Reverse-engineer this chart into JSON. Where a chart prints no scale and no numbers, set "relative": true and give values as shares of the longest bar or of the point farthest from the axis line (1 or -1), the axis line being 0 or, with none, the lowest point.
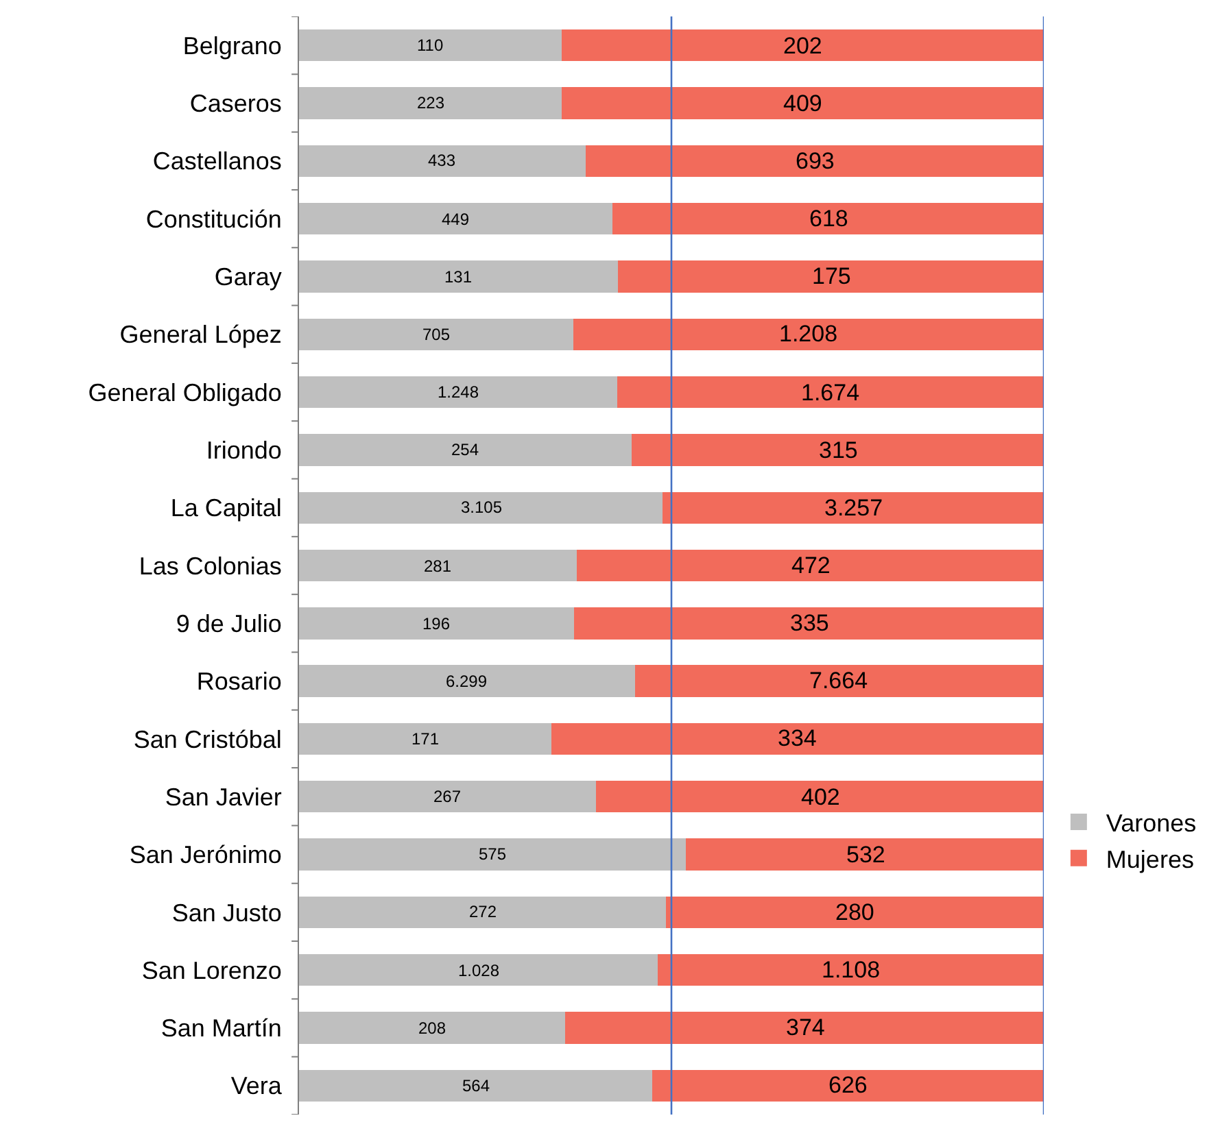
{
  "chart_data": {
    "type": "bar",
    "orientation": "horizontal",
    "stacked": true,
    "relative": true,
    "categories": [
      "Belgrano",
      "Caseros",
      "Castellanos",
      "Constitución",
      "Garay",
      "General López",
      "General Obligado",
      "Iriondo",
      "La Capital",
      "Las Colonias",
      "9 de Julio",
      "Rosario",
      "San Cristóbal",
      "San Javier",
      "San Jerónimo",
      "San Justo",
      "San Lorenzo",
      "San Martín",
      "Vera"
    ],
    "series": [
      {
        "name": "Varones",
        "color": "#bfbfbf",
        "values": [
          0.3526,
          0.3528,
          0.3845,
          0.4208,
          0.4281,
          0.3685,
          0.4271,
          0.4464,
          0.4881,
          0.3732,
          0.3691,
          0.4511,
          0.3386,
          0.3991,
          0.5194,
          0.4928,
          0.4813,
          0.3574,
          0.4739
        ]
      },
      {
        "name": "Mujeres",
        "color": "#f26b5b",
        "values": [
          0.6474,
          0.6472,
          0.6155,
          0.5792,
          0.5719,
          0.6315,
          0.5729,
          0.5536,
          0.5119,
          0.6268,
          0.6309,
          0.5489,
          0.6614,
          0.6009,
          0.4806,
          0.5072,
          0.5187,
          0.6426,
          0.5261
        ]
      }
    ],
    "annotations": [
      "110",
      "202",
      "223",
      "409",
      "433",
      "693",
      "449",
      "618",
      "131",
      "175",
      "705",
      "1.208",
      "1.248",
      "1.674",
      "254",
      "315",
      "3.105",
      "3.257",
      "281",
      "472",
      "196",
      "335",
      "6.299",
      "7.664",
      "171",
      "334",
      "267",
      "402",
      "575",
      "532",
      "272",
      "280",
      "1.028",
      "1.108",
      "208",
      "374",
      "564",
      "626"
    ],
    "ref_lines": [
      {
        "axis": "x",
        "value": 0.5,
        "color": "#4472c4"
      },
      {
        "axis": "x",
        "value": 1,
        "color": "#4472c4"
      }
    ],
    "legend": "right"
  }
}
